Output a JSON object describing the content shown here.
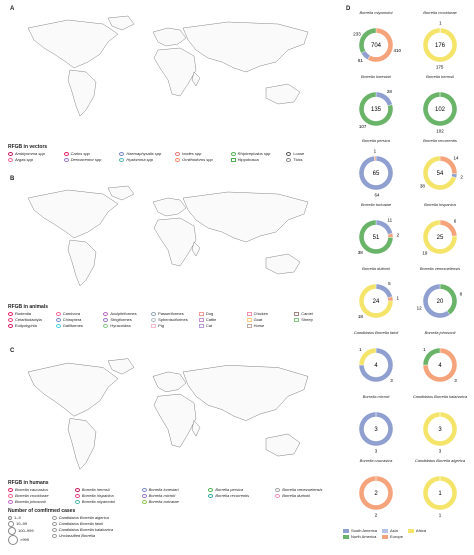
{
  "panels": {
    "a": {
      "letter": "A",
      "legend_title": "RFGB in vectors",
      "items": [
        {
          "label": "Amblyomma spp",
          "color": "#c2185b",
          "shape": "circ",
          "italic": true
        },
        {
          "label": "Carios spp",
          "color": "#e91e63",
          "shape": "circ",
          "italic": true
        },
        {
          "label": "Haemaphysalis spp",
          "color": "#7986cb",
          "shape": "circ",
          "italic": true
        },
        {
          "label": "Ixodes spp",
          "color": "#e57373",
          "shape": "circ",
          "italic": true
        },
        {
          "label": "Rhipicephalus spp",
          "color": "#4caf50",
          "shape": "circ",
          "italic": true
        },
        {
          "label": "Louse",
          "color": "#555555",
          "shape": "circ",
          "italic": false
        },
        {
          "label": "Argas spp",
          "color": "#f06292",
          "shape": "circ",
          "italic": true
        },
        {
          "label": "Dermacentor spp",
          "color": "#9575cd",
          "shape": "circ",
          "italic": true
        },
        {
          "label": "Hyalomma spp",
          "color": "#4db6ac",
          "shape": "circ",
          "italic": true
        },
        {
          "label": "Ornithodoros spp",
          "color": "#ff8a65",
          "shape": "circ",
          "italic": true
        },
        {
          "label": "Hippobosca",
          "color": "#4caf50",
          "shape": "sq",
          "italic": false
        },
        {
          "label": "Ticks",
          "color": "#888888",
          "shape": "circ",
          "italic": false
        }
      ]
    },
    "b": {
      "letter": "B",
      "legend_title": "RFGB in animals",
      "items": [
        {
          "label": "Rodentia",
          "color": "#e91e63",
          "shape": "circ"
        },
        {
          "label": "Carnivora",
          "color": "#f06292",
          "shape": "circ"
        },
        {
          "label": "Accipitriformes",
          "color": "#ba68c8",
          "shape": "circ"
        },
        {
          "label": "Passeriformes",
          "color": "#90a4ae",
          "shape": "circ"
        },
        {
          "label": "Dog",
          "color": "#ef9a9a",
          "shape": "sq"
        },
        {
          "label": "Chicken",
          "color": "#f48fb1",
          "shape": "sq"
        },
        {
          "label": "Camel",
          "color": "#a1887f",
          "shape": "sq"
        },
        {
          "label": "Cetartiodactyla",
          "color": "#ec407a",
          "shape": "circ"
        },
        {
          "label": "Chiroptera",
          "color": "#7986cb",
          "shape": "circ"
        },
        {
          "label": "Strigiformes",
          "color": "#9575cd",
          "shape": "circ"
        },
        {
          "label": "Sphenisciformes",
          "color": "#b0bec5",
          "shape": "circ"
        },
        {
          "label": "Cattle",
          "color": "#ce93d8",
          "shape": "sq"
        },
        {
          "label": "Goat",
          "color": "#ffcc80",
          "shape": "sq"
        },
        {
          "label": "Sheep",
          "color": "#81c784",
          "shape": "sq"
        },
        {
          "label": "Eulipotyphla",
          "color": "#d81b60",
          "shape": "circ"
        },
        {
          "label": "Galliformes",
          "color": "#4dd0e1",
          "shape": "circ"
        },
        {
          "label": "Hyracoidea",
          "color": "#81c784",
          "shape": "circ"
        },
        {
          "label": "Pig",
          "color": "#f8bbd0",
          "shape": "sq"
        },
        {
          "label": "Cat",
          "color": "#b39ddb",
          "shape": "sq"
        },
        {
          "label": "Horse",
          "color": "#bcaaa4",
          "shape": "sq"
        }
      ]
    },
    "c": {
      "letter": "C",
      "legend_title": "RFGB in humans",
      "items": [
        {
          "label": "Borrelia caucasica",
          "color": "#e91e63"
        },
        {
          "label": "Borrelia hermsii",
          "color": "#c2185b"
        },
        {
          "label": "Borrelia lonestari",
          "color": "#7986cb"
        },
        {
          "label": "Borrelia persica",
          "color": "#4caf50"
        },
        {
          "label": "Borrelia venezuelensis",
          "color": "#9e9e9e"
        },
        {
          "label": "Borrelia crocidurae",
          "color": "#f06292"
        },
        {
          "label": "Borrelia hispanica",
          "color": "#ec407a"
        },
        {
          "label": "Borrelia microti",
          "color": "#9575cd"
        },
        {
          "label": "Borrelia recurrentis",
          "color": "#26a69a"
        },
        {
          "label": "Borrelia duttonii",
          "color": "#f48fb1"
        },
        {
          "label": "Borrelia johnsonii",
          "color": "#ba68c8"
        },
        {
          "label": "Borrelia miyamotoi",
          "color": "#4db6ac"
        },
        {
          "label": "Borrelia turicatae",
          "color": "#8bc34a"
        }
      ],
      "cases_title": "Number of comfirmed cases",
      "cases": [
        "1–9",
        "10–99",
        "100–999",
        ">999"
      ],
      "cand": [
        "Candidatus Borrelia algerica",
        "Candidatus Borrelia fainii",
        "Candidatus Borrelia kalaharica",
        "Unclassified Borrelia"
      ]
    },
    "d": {
      "letter": "D"
    }
  },
  "region_colors": {
    "south_america": "#8fa0d0",
    "north_america": "#6ab46a",
    "asia": "#8fa0d0",
    "africa": "#f4e56a",
    "europe": "#f4a37a"
  },
  "rings": [
    {
      "name": "Borrelia miyamotoi",
      "segments": [
        {
          "region": "europe",
          "value": 410,
          "label": "410",
          "pos": "left"
        },
        {
          "region": "asia",
          "value": 61,
          "label": "61",
          "pos": "bottom-right"
        },
        {
          "region": "north_america",
          "value": 233,
          "label": "233",
          "pos": "top-right"
        }
      ],
      "center": "704",
      "center_bg": "#f4a37a"
    },
    {
      "name": "Borrelia crocidurae",
      "segments": [
        {
          "region": "europe",
          "value": 1,
          "label": "1",
          "pos": "top"
        },
        {
          "region": "africa",
          "value": 175,
          "label": "175",
          "pos": "bottom"
        }
      ],
      "center": "176",
      "center_bg": "#f4e56a"
    },
    {
      "name": "Borrelia lonestari",
      "segments": [
        {
          "region": "asia",
          "value": 28,
          "label": "28",
          "pos": "left"
        },
        {
          "region": "north_america",
          "value": 107,
          "label": "107",
          "pos": "bottom-right"
        }
      ],
      "center": "135",
      "center_bg": "#6ab46a"
    },
    {
      "name": "Borrelia hermsii",
      "segments": [
        {
          "region": "north_america",
          "value": 102,
          "label": "102",
          "pos": "bottom"
        }
      ],
      "center": "102",
      "center_bg": "#6ab46a"
    },
    {
      "name": "Borrelia persica",
      "segments": [
        {
          "region": "asia",
          "value": 64,
          "label": "64",
          "pos": "bottom"
        },
        {
          "region": "europe",
          "value": 1,
          "label": "1",
          "pos": "top"
        }
      ],
      "center": "65",
      "center_bg": "#8fa0d0"
    },
    {
      "name": "Borrelia recurrentis",
      "segments": [
        {
          "region": "europe",
          "value": 14,
          "label": "14",
          "pos": "left"
        },
        {
          "region": "asia",
          "value": 2,
          "label": "2",
          "pos": "top-left"
        },
        {
          "region": "africa",
          "value": 38,
          "label": "38",
          "pos": "right"
        }
      ],
      "center": "54",
      "center_bg": "#f4e56a"
    },
    {
      "name": "Borrelia turicatae",
      "segments": [
        {
          "region": "south_america",
          "value": 11,
          "label": "11",
          "pos": "left"
        },
        {
          "region": "europe",
          "value": 2,
          "label": "2",
          "pos": "top-left"
        },
        {
          "region": "north_america",
          "value": 38,
          "label": "38",
          "pos": "right"
        }
      ],
      "center": "51",
      "center_bg": "#6ab46a"
    },
    {
      "name": "Borrelia hispanica",
      "segments": [
        {
          "region": "europe",
          "value": 6,
          "label": "6",
          "pos": "left"
        },
        {
          "region": "africa",
          "value": 19,
          "label": "19",
          "pos": "right"
        }
      ],
      "center": "25",
      "center_bg": "#f4e56a"
    },
    {
      "name": "Borrelia duttonii",
      "segments": [
        {
          "region": "asia",
          "value": 5,
          "label": "5",
          "pos": "left"
        },
        {
          "region": "europe",
          "value": 1,
          "label": "1",
          "pos": "top-left"
        },
        {
          "region": "africa",
          "value": 18,
          "label": "18",
          "pos": "bottom"
        }
      ],
      "center": "24",
      "center_bg": "#f4e56a"
    },
    {
      "name": "Borrelia venezuelensis",
      "segments": [
        {
          "region": "north_america",
          "value": 8,
          "label": "8",
          "pos": "left"
        },
        {
          "region": "asia",
          "value": 12,
          "label": "12",
          "pos": "right"
        }
      ],
      "center": "20",
      "center_bg": "#6ab46a"
    },
    {
      "name": "Candidatus Borrelia fainii",
      "segments": [
        {
          "region": "asia",
          "value": 3,
          "label": "3",
          "pos": "left"
        },
        {
          "region": "africa",
          "value": 1,
          "label": "1",
          "pos": "right"
        }
      ],
      "center": "4",
      "center_bg": "#8fa0d0"
    },
    {
      "name": "Borrelia johnsonii",
      "segments": [
        {
          "region": "europe",
          "value": 3,
          "label": "3",
          "pos": "left"
        },
        {
          "region": "north_america",
          "value": 1,
          "label": "1",
          "pos": "right"
        }
      ],
      "center": "4",
      "center_bg": "#f4a37a"
    },
    {
      "name": "Borrelia microti",
      "segments": [
        {
          "region": "asia",
          "value": 3,
          "label": "3",
          "pos": "bottom"
        }
      ],
      "center": "3",
      "center_bg": "#8fa0d0"
    },
    {
      "name": "Candidatus Borrelia kalaharica",
      "segments": [
        {
          "region": "africa",
          "value": 3,
          "label": "3",
          "pos": "bottom"
        }
      ],
      "center": "3",
      "center_bg": "#f4e56a"
    },
    {
      "name": "Borrelia caucasica",
      "segments": [
        {
          "region": "europe",
          "value": 2,
          "label": "2",
          "pos": "bottom"
        }
      ],
      "center": "2",
      "center_bg": "#f4a37a"
    },
    {
      "name": "Candidatus Borrelia algerica",
      "segments": [
        {
          "region": "africa",
          "value": 1,
          "label": "1",
          "pos": "bottom"
        }
      ],
      "center": "1",
      "center_bg": "#f4e56a"
    }
  ],
  "region_legend": [
    {
      "label": "South America",
      "color": "#8fa0d0"
    },
    {
      "label": "Asia",
      "color": "#b6c2e6"
    },
    {
      "label": "Africa",
      "color": "#f4e56a"
    },
    {
      "label": "North America",
      "color": "#6ab46a"
    },
    {
      "label": "Europe",
      "color": "#f4a37a"
    }
  ]
}
